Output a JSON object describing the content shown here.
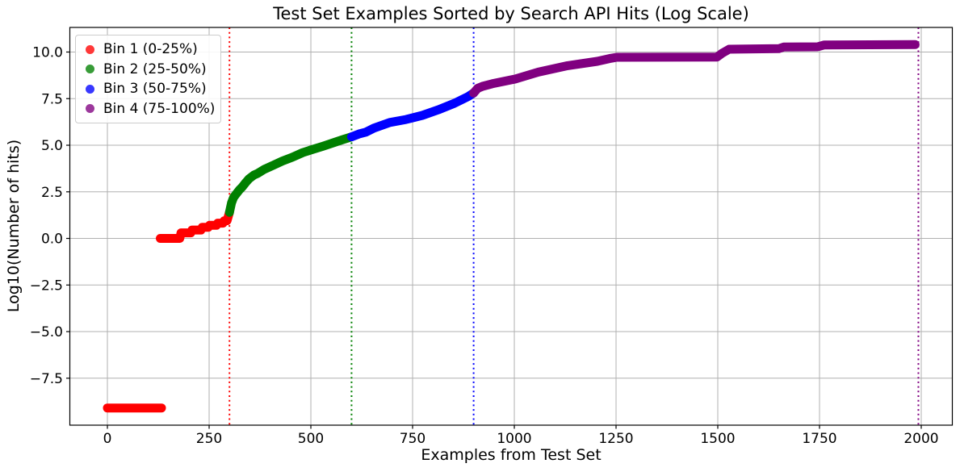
{
  "chart_data": {
    "type": "scatter",
    "title": "Test Set Examples Sorted by Search API Hits (Log Scale)",
    "xlabel": "Examples from Test Set",
    "ylabel": "Log10(Number of hits)",
    "xlim": [
      -92.3,
      2076.4
    ],
    "ylim": [
      -10.02,
      11.32
    ],
    "grid": true,
    "grid_color": "#b0b0b0",
    "marker_size_px": 11,
    "legend": {
      "position": "upper left",
      "entries": [
        {
          "label": "Bin 1 (0-25%)",
          "color": "#ff0000"
        },
        {
          "label": "Bin 2 (25-50%)",
          "color": "#008000"
        },
        {
          "label": "Bin 3 (50-75%)",
          "color": "#0000ff"
        },
        {
          "label": "Bin 4 (75-100%)",
          "color": "#800080"
        }
      ]
    },
    "xticks": {
      "values": [
        0,
        250,
        500,
        750,
        1000,
        1250,
        1500,
        1750,
        2000
      ],
      "labels": [
        "0",
        "250",
        "500",
        "750",
        "1000",
        "1250",
        "1500",
        "1750",
        "2000"
      ]
    },
    "yticks": {
      "values": [
        -7.5,
        -5.0,
        -2.5,
        0.0,
        2.5,
        5.0,
        7.5,
        10.0
      ],
      "labels": [
        "−7.5",
        "−5.0",
        "−2.5",
        "0.0",
        "2.5",
        "5.0",
        "7.5",
        "10.0"
      ]
    },
    "vlines": [
      {
        "x": 300,
        "color": "#ff0000",
        "style": "dotted"
      },
      {
        "x": 600,
        "color": "#008000",
        "style": "dotted"
      },
      {
        "x": 900,
        "color": "#0000ff",
        "style": "dotted"
      },
      {
        "x": 1993,
        "color": "#800080",
        "style": "dotted"
      }
    ],
    "series": [
      {
        "name": "Bin 1 (0-25%)",
        "color": "#ff0000",
        "segments": [
          [
            [
              0,
              -9.1
            ],
            [
              133,
              -9.1
            ]
          ],
          [
            [
              130,
              0
            ],
            [
              178,
              0
            ],
            [
              181,
              0.3
            ],
            [
              205,
              0.3
            ],
            [
              208,
              0.45
            ],
            [
              230,
              0.45
            ],
            [
              233,
              0.6
            ],
            [
              248,
              0.6
            ],
            [
              251,
              0.7
            ],
            [
              268,
              0.7
            ],
            [
              271,
              0.82
            ],
            [
              284,
              0.82
            ],
            [
              287,
              0.95
            ],
            [
              294,
              0.95
            ],
            [
              296,
              1.1
            ],
            [
              298,
              1.25
            ],
            [
              300,
              1.4
            ]
          ]
        ]
      },
      {
        "name": "Bin 2 (25-50%)",
        "color": "#008000",
        "segments": [
          [
            [
              300,
              1.4
            ],
            [
              305,
              1.9
            ],
            [
              310,
              2.2
            ],
            [
              317,
              2.4
            ],
            [
              325,
              2.62
            ],
            [
              331,
              2.75
            ],
            [
              340,
              3.0
            ],
            [
              348,
              3.2
            ],
            [
              360,
              3.4
            ],
            [
              370,
              3.5
            ],
            [
              385,
              3.7
            ],
            [
              407,
              3.92
            ],
            [
              430,
              4.15
            ],
            [
              454,
              4.35
            ],
            [
              480,
              4.6
            ],
            [
              505,
              4.78
            ],
            [
              530,
              4.95
            ],
            [
              558,
              5.15
            ],
            [
              578,
              5.3
            ],
            [
              600,
              5.45
            ]
          ]
        ]
      },
      {
        "name": "Bin 3 (50-75%)",
        "color": "#0000ff",
        "segments": [
          [
            [
              600,
              5.45
            ],
            [
              618,
              5.6
            ],
            [
              635,
              5.7
            ],
            [
              655,
              5.92
            ],
            [
              694,
              6.22
            ],
            [
              734,
              6.38
            ],
            [
              774,
              6.6
            ],
            [
              813,
              6.9
            ],
            [
              853,
              7.25
            ],
            [
              887,
              7.62
            ],
            [
              900,
              7.8
            ]
          ]
        ]
      },
      {
        "name": "Bin 4 (75-100%)",
        "color": "#800080",
        "segments": [
          [
            [
              900,
              7.8
            ],
            [
              910,
              8.05
            ],
            [
              922,
              8.16
            ],
            [
              946,
              8.3
            ],
            [
              1002,
              8.55
            ],
            [
              1059,
              8.92
            ],
            [
              1131,
              9.27
            ],
            [
              1204,
              9.5
            ],
            [
              1234,
              9.65
            ],
            [
              1252,
              9.72
            ],
            [
              1498,
              9.73
            ],
            [
              1512,
              9.95
            ],
            [
              1528,
              10.15
            ],
            [
              1650,
              10.18
            ],
            [
              1662,
              10.27
            ],
            [
              1745,
              10.28
            ],
            [
              1762,
              10.38
            ],
            [
              1985,
              10.4
            ]
          ]
        ]
      }
    ]
  }
}
